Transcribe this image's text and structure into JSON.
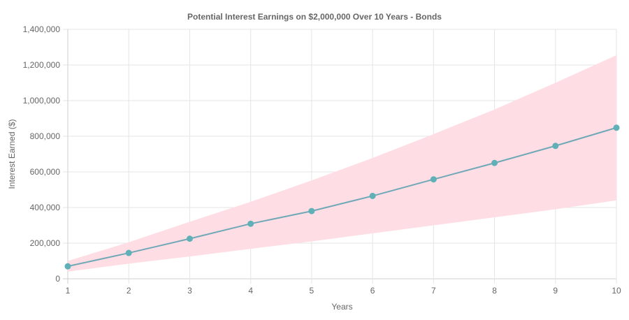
{
  "chart_data": {
    "type": "line",
    "title": "Potential Interest Earnings on $2,000,000 Over 10 Years - Bonds",
    "xlabel": "Years",
    "ylabel": "Interest Earned ($)",
    "x": [
      1,
      2,
      3,
      4,
      5,
      6,
      7,
      8,
      9,
      10
    ],
    "x_tick_labels": [
      "1",
      "2",
      "3",
      "4",
      "5",
      "6",
      "7",
      "8",
      "9",
      "10"
    ],
    "y_ticks": [
      0,
      200000,
      400000,
      600000,
      800000,
      1000000,
      1200000,
      1400000
    ],
    "y_tick_labels": [
      "0",
      "200,000",
      "400,000",
      "600,000",
      "800,000",
      "1,000,000",
      "1,200,000",
      "1,400,000"
    ],
    "ylim": [
      0,
      1400000
    ],
    "xlim": [
      1,
      10
    ],
    "grid": true,
    "series": [
      {
        "values": [
          70000,
          144900,
          225000,
          309000,
          380000,
          465000,
          558000,
          650000,
          746000,
          848000
        ],
        "color": "#6fa8b6",
        "point_color": "#5fb1b7"
      }
    ],
    "band": {
      "lower": [
        40000,
        85000,
        125000,
        168000,
        210000,
        255000,
        300000,
        345000,
        390000,
        440000
      ],
      "upper": [
        100000,
        205000,
        320000,
        432000,
        552000,
        678000,
        812000,
        950000,
        1100000,
        1255000
      ],
      "color": "#ffdde4"
    }
  }
}
